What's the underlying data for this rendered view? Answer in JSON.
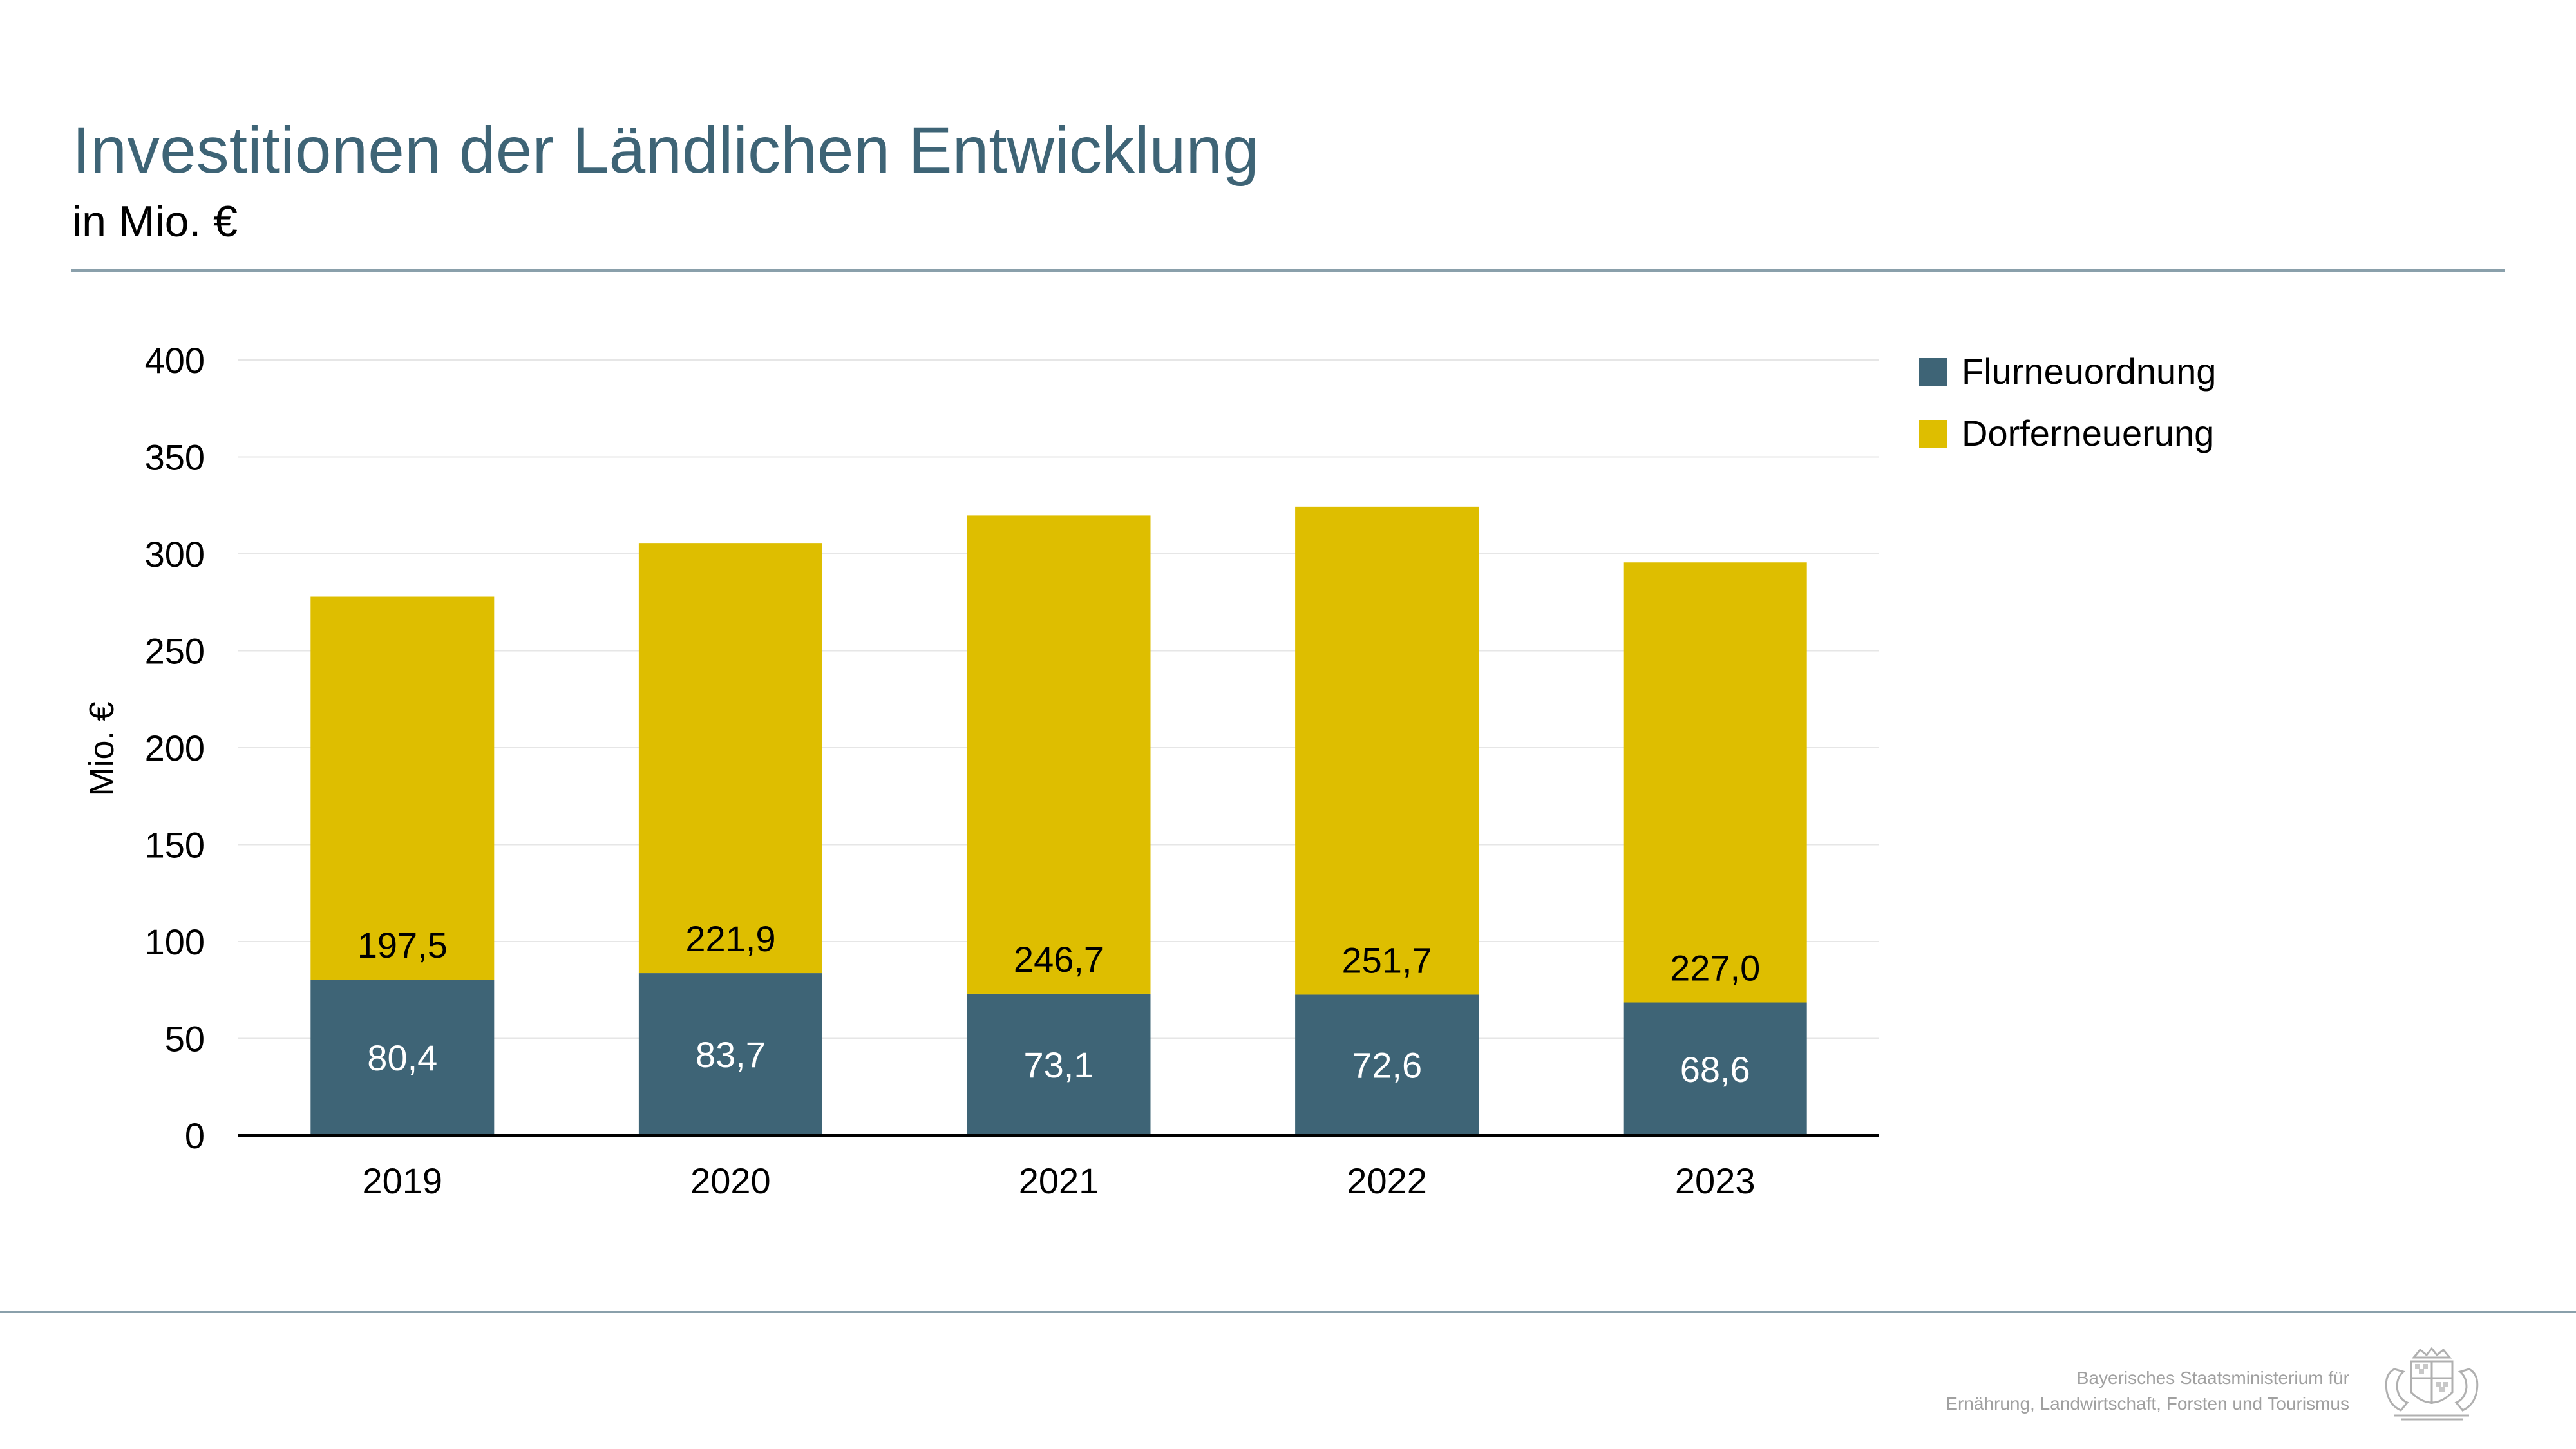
{
  "page": {
    "title": "Investitionen der Ländlichen Entwicklung",
    "subtitle": "in Mio. €"
  },
  "chart_data": {
    "type": "bar",
    "stacked": true,
    "categories": [
      "2019",
      "2020",
      "2021",
      "2022",
      "2023"
    ],
    "series": [
      {
        "name": "Flurneuordnung",
        "color": "#3e6476",
        "values": [
          80.4,
          83.7,
          73.1,
          72.6,
          68.6
        ],
        "labels": [
          "80,4",
          "83,7",
          "73,1",
          "72,6",
          "68,6"
        ],
        "label_color": "#ffffff"
      },
      {
        "name": "Dorferneuerung",
        "color": "#debe00",
        "values": [
          197.5,
          221.9,
          246.7,
          251.7,
          227.0
        ],
        "labels": [
          "197,5",
          "221,9",
          "246,7",
          "251,7",
          "227,0"
        ],
        "label_color": "#000000"
      }
    ],
    "ylabel": "Mio. €",
    "ylim": [
      0,
      400
    ],
    "yticks": [
      0,
      50,
      100,
      150,
      200,
      250,
      300,
      350,
      400
    ],
    "ytick_labels": [
      "0",
      "50",
      "100",
      "150",
      "200",
      "250",
      "300",
      "350",
      "400"
    ],
    "grid": true,
    "legend_position": "top-right"
  },
  "footer": {
    "line1": "Bayerisches Staatsministerium für",
    "line2": "Ernährung, Landwirtschaft, Forsten und Tourismus"
  },
  "colors": {
    "title": "#3e6476",
    "rule": "#8aa0ab",
    "grid": "#e6e6e6",
    "axis": "#000000"
  },
  "icons": {
    "logo": "bavarian-coat-of-arms-icon"
  }
}
